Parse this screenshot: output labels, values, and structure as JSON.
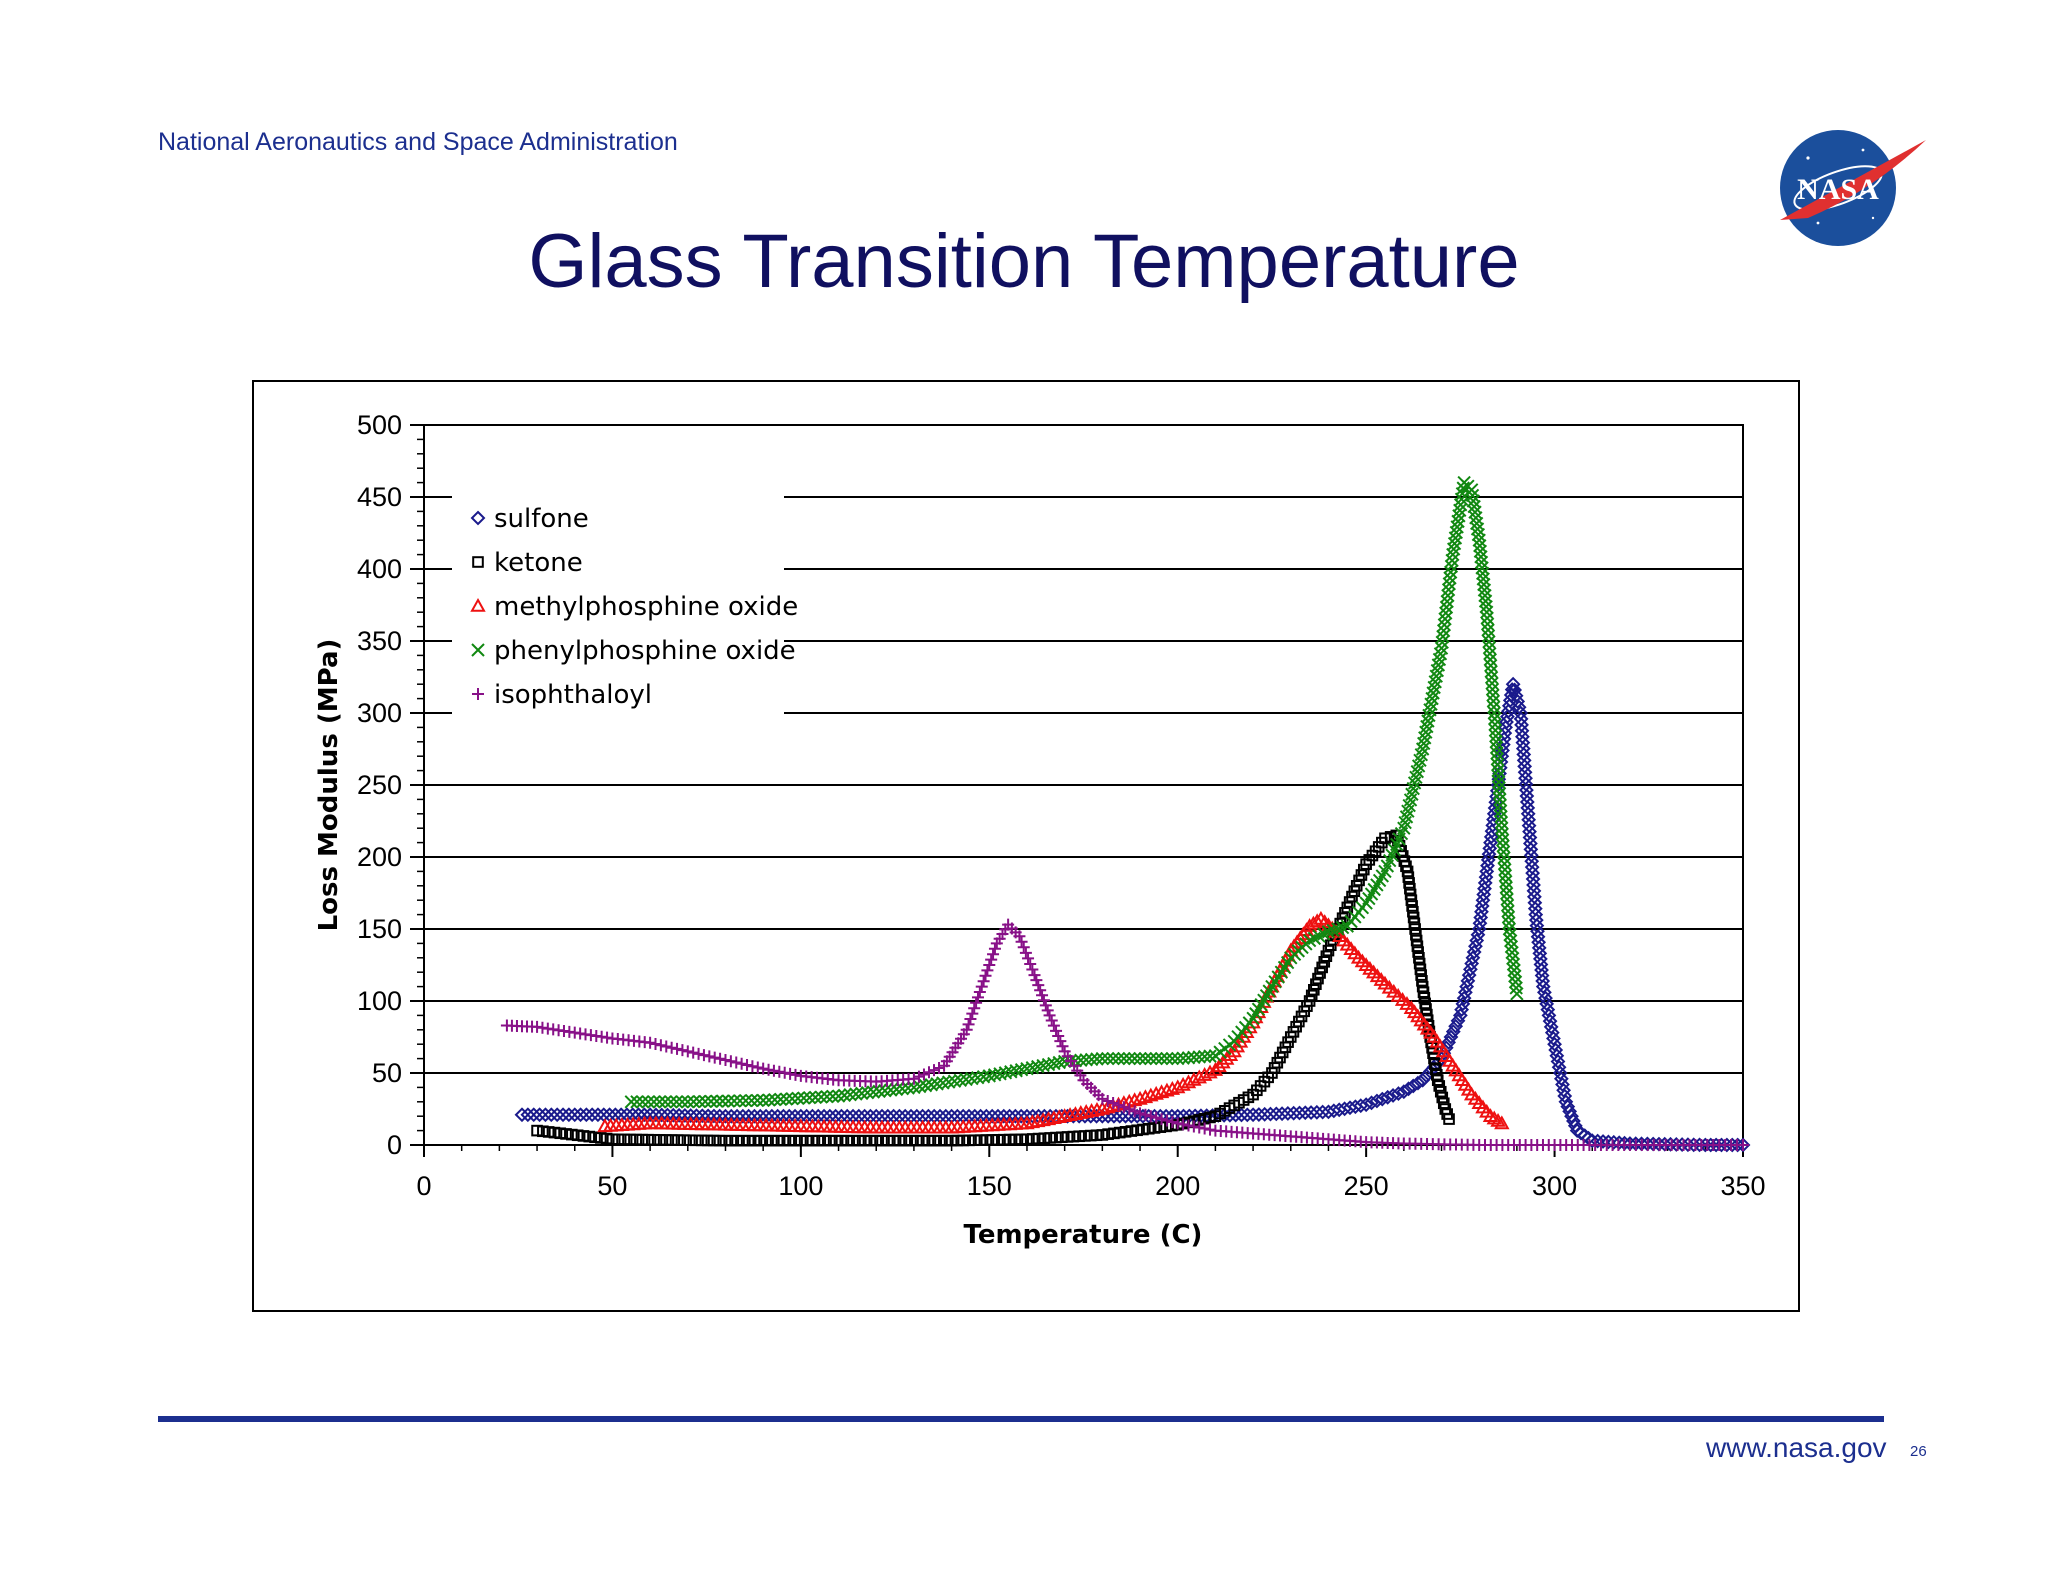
{
  "header": {
    "agency": "National Aeronautics and Space Administration",
    "logo_text": "NASA",
    "title": "Glass Transition Temperature"
  },
  "footer": {
    "url": "www.nasa.gov",
    "page": "26"
  },
  "colors": {
    "text_blue": "#1c2f8f",
    "title_blue": "#101060",
    "logo_blue": "#1b4f9c",
    "logo_red": "#e03030"
  },
  "chart_data": {
    "type": "scatter",
    "xlabel": "Temperature (C)",
    "ylabel": "Loss Modulus (MPa)",
    "xlim": [
      0,
      350
    ],
    "ylim": [
      0,
      500
    ],
    "x_ticks": [
      0,
      50,
      100,
      150,
      200,
      250,
      300,
      350
    ],
    "y_ticks": [
      0,
      50,
      100,
      150,
      200,
      250,
      300,
      350,
      400,
      450,
      500
    ],
    "grid": "horizontal",
    "legend_position": "top-left",
    "series": [
      {
        "name": "sulfone",
        "marker": "diamond",
        "color": "#1a1a8c",
        "points": [
          [
            26,
            21
          ],
          [
            40,
            21
          ],
          [
            60,
            21
          ],
          [
            80,
            20
          ],
          [
            100,
            20
          ],
          [
            120,
            20
          ],
          [
            140,
            20
          ],
          [
            160,
            20
          ],
          [
            180,
            20
          ],
          [
            200,
            20
          ],
          [
            220,
            21
          ],
          [
            240,
            23
          ],
          [
            250,
            28
          ],
          [
            260,
            37
          ],
          [
            265,
            45
          ],
          [
            270,
            60
          ],
          [
            275,
            90
          ],
          [
            280,
            150
          ],
          [
            284,
            230
          ],
          [
            287,
            290
          ],
          [
            289,
            320
          ],
          [
            291,
            300
          ],
          [
            293,
            230
          ],
          [
            295,
            160
          ],
          [
            297,
            110
          ],
          [
            300,
            70
          ],
          [
            303,
            30
          ],
          [
            306,
            10
          ],
          [
            310,
            3
          ],
          [
            320,
            1
          ],
          [
            340,
            0
          ],
          [
            350,
            0
          ]
        ]
      },
      {
        "name": "ketone",
        "marker": "square",
        "color": "#000000",
        "points": [
          [
            30,
            10
          ],
          [
            50,
            4
          ],
          [
            80,
            3
          ],
          [
            100,
            3
          ],
          [
            120,
            3
          ],
          [
            140,
            3
          ],
          [
            160,
            4
          ],
          [
            180,
            7
          ],
          [
            200,
            14
          ],
          [
            210,
            20
          ],
          [
            220,
            35
          ],
          [
            225,
            50
          ],
          [
            230,
            75
          ],
          [
            235,
            100
          ],
          [
            240,
            135
          ],
          [
            245,
            165
          ],
          [
            250,
            195
          ],
          [
            255,
            213
          ],
          [
            258,
            215
          ],
          [
            261,
            190
          ],
          [
            263,
            150
          ],
          [
            265,
            110
          ],
          [
            267,
            75
          ],
          [
            269,
            45
          ],
          [
            271,
            25
          ],
          [
            272,
            18
          ]
        ]
      },
      {
        "name": "methylphosphine oxide",
        "marker": "triangle",
        "color": "#ee1111",
        "points": [
          [
            48,
            13
          ],
          [
            60,
            15
          ],
          [
            80,
            14
          ],
          [
            100,
            13
          ],
          [
            120,
            12
          ],
          [
            140,
            12
          ],
          [
            160,
            15
          ],
          [
            170,
            20
          ],
          [
            180,
            25
          ],
          [
            190,
            32
          ],
          [
            200,
            40
          ],
          [
            210,
            52
          ],
          [
            215,
            65
          ],
          [
            220,
            85
          ],
          [
            225,
            110
          ],
          [
            230,
            135
          ],
          [
            235,
            152
          ],
          [
            238,
            157
          ],
          [
            242,
            148
          ],
          [
            248,
            130
          ],
          [
            255,
            112
          ],
          [
            262,
            95
          ],
          [
            268,
            75
          ],
          [
            273,
            55
          ],
          [
            278,
            35
          ],
          [
            283,
            20
          ],
          [
            286,
            15
          ]
        ]
      },
      {
        "name": "phenylphosphine oxide",
        "marker": "x",
        "color": "#118811",
        "points": [
          [
            55,
            30
          ],
          [
            70,
            30
          ],
          [
            90,
            31
          ],
          [
            110,
            34
          ],
          [
            130,
            40
          ],
          [
            150,
            48
          ],
          [
            160,
            53
          ],
          [
            170,
            58
          ],
          [
            180,
            60
          ],
          [
            190,
            60
          ],
          [
            200,
            60
          ],
          [
            210,
            62
          ],
          [
            215,
            72
          ],
          [
            220,
            88
          ],
          [
            225,
            110
          ],
          [
            230,
            130
          ],
          [
            235,
            142
          ],
          [
            240,
            148
          ],
          [
            245,
            152
          ],
          [
            250,
            168
          ],
          [
            255,
            190
          ],
          [
            260,
            220
          ],
          [
            265,
            275
          ],
          [
            270,
            345
          ],
          [
            273,
            410
          ],
          [
            276,
            460
          ],
          [
            278,
            455
          ],
          [
            280,
            420
          ],
          [
            282,
            370
          ],
          [
            284,
            300
          ],
          [
            286,
            220
          ],
          [
            288,
            150
          ],
          [
            290,
            105
          ]
        ]
      },
      {
        "name": "isophthaloyl",
        "marker": "plus",
        "color": "#881188",
        "points": [
          [
            22,
            83
          ],
          [
            30,
            82
          ],
          [
            40,
            78
          ],
          [
            50,
            74
          ],
          [
            60,
            71
          ],
          [
            70,
            65
          ],
          [
            80,
            59
          ],
          [
            90,
            53
          ],
          [
            100,
            48
          ],
          [
            110,
            45
          ],
          [
            120,
            44
          ],
          [
            130,
            46
          ],
          [
            138,
            55
          ],
          [
            144,
            80
          ],
          [
            148,
            110
          ],
          [
            152,
            140
          ],
          [
            155,
            153
          ],
          [
            158,
            145
          ],
          [
            162,
            118
          ],
          [
            166,
            90
          ],
          [
            170,
            65
          ],
          [
            175,
            45
          ],
          [
            180,
            32
          ],
          [
            190,
            22
          ],
          [
            200,
            15
          ],
          [
            210,
            10
          ],
          [
            220,
            8
          ],
          [
            230,
            6
          ],
          [
            240,
            4
          ],
          [
            250,
            2
          ],
          [
            260,
            1
          ],
          [
            280,
            0
          ],
          [
            300,
            0
          ],
          [
            320,
            0
          ],
          [
            350,
            0
          ]
        ]
      }
    ]
  }
}
